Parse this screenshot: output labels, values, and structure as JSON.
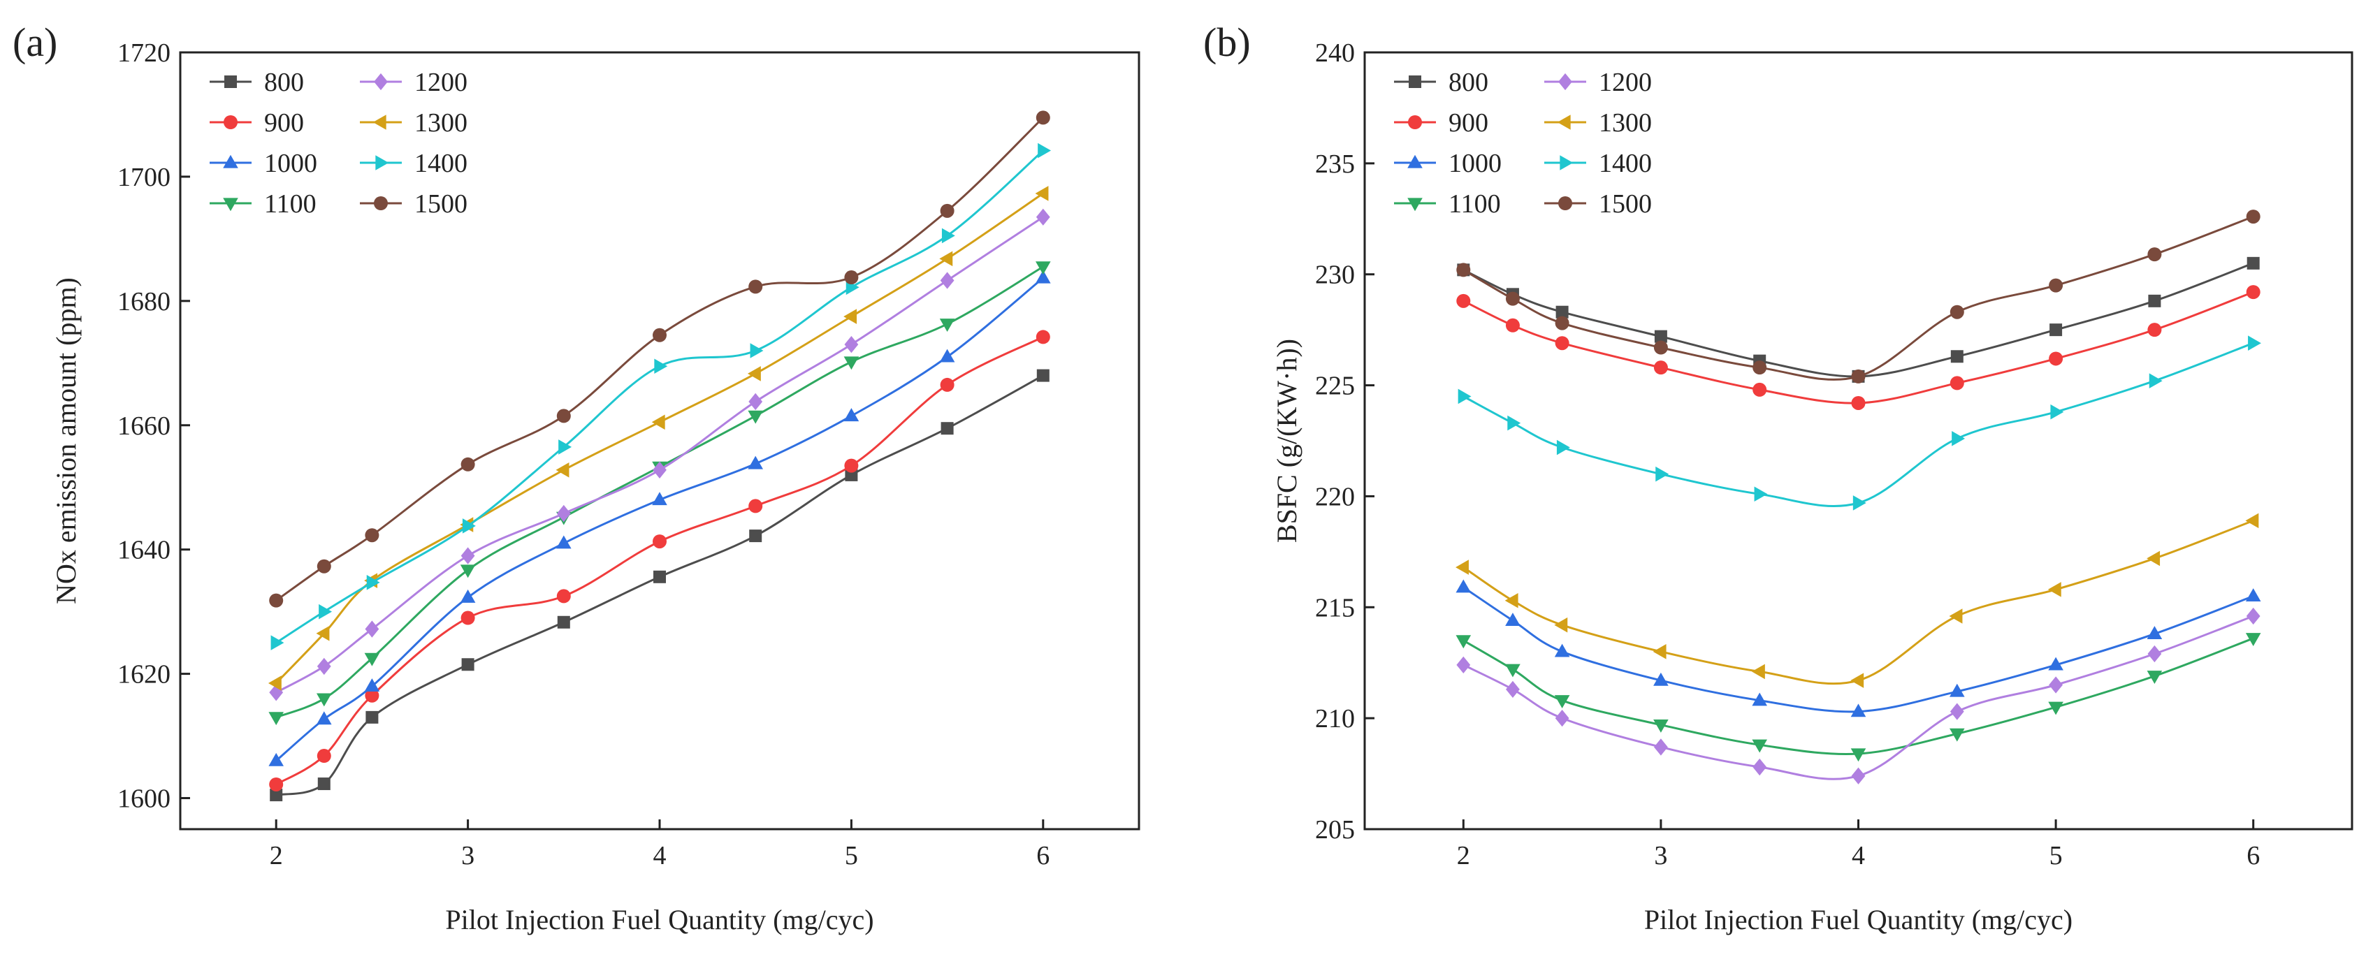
{
  "chart_data": [
    {
      "type": "line",
      "panel_label": "(a)",
      "xlabel": "Pilot Injection Fuel Quantity (mg/cyc)",
      "ylabel": "NOx emission amount (ppm)",
      "xlim": [
        1.5,
        6.5
      ],
      "ylim": [
        1595,
        1720
      ],
      "xticks": [
        2,
        3,
        4,
        5,
        6
      ],
      "yticks": [
        1600,
        1620,
        1640,
        1660,
        1680,
        1700,
        1720
      ],
      "x": [
        2,
        2.25,
        2.5,
        3,
        3.5,
        4,
        4.5,
        5,
        5.5,
        6
      ],
      "legend_position": "top-left",
      "series": [
        {
          "name": "800",
          "color": "#4d4d4d",
          "marker": "square",
          "values": [
            1600.5,
            1602.3,
            1613,
            1621.5,
            1628.3,
            1635.6,
            1642.2,
            1652,
            1659.5,
            1668
          ]
        },
        {
          "name": "900",
          "color": "#f03c3c",
          "marker": "circle",
          "values": [
            1602.2,
            1606.8,
            1616.5,
            1629,
            1632.5,
            1641.3,
            1647,
            1653.5,
            1666.5,
            1674.2
          ]
        },
        {
          "name": "1000",
          "color": "#2f6fe0",
          "marker": "triangle-up",
          "values": [
            1606,
            1612.7,
            1618,
            1632.3,
            1641,
            1648,
            1653.8,
            1661.5,
            1671,
            1683.7
          ]
        },
        {
          "name": "1100",
          "color": "#2ea860",
          "marker": "triangle-down",
          "values": [
            1613,
            1616,
            1622.5,
            1636.7,
            1645.2,
            1653.3,
            1661.5,
            1670.2,
            1676.3,
            1685.5
          ]
        },
        {
          "name": "1200",
          "color": "#b07fe0",
          "marker": "diamond",
          "values": [
            1617,
            1621.2,
            1627.2,
            1639,
            1645.8,
            1652.8,
            1663.8,
            1673,
            1683.3,
            1693.5
          ]
        },
        {
          "name": "1300",
          "color": "#d4a017",
          "marker": "triangle-left",
          "values": [
            1618.5,
            1626.5,
            1635,
            1644,
            1652.8,
            1660.5,
            1668.3,
            1677.5,
            1686.8,
            1697.3
          ]
        },
        {
          "name": "1400",
          "color": "#1fc6cf",
          "marker": "triangle-right",
          "values": [
            1625,
            1630,
            1634.7,
            1643.8,
            1656.5,
            1669.5,
            1672,
            1682.2,
            1690.5,
            1704.2
          ]
        },
        {
          "name": "1500",
          "color": "#7a4a3c",
          "marker": "circle",
          "values": [
            1631.8,
            1637.3,
            1642.3,
            1653.7,
            1661.5,
            1674.5,
            1682.3,
            1683.8,
            1694.5,
            1709.5
          ]
        }
      ]
    },
    {
      "type": "line",
      "panel_label": "(b)",
      "xlabel": "Pilot Injection Fuel Quantity (mg/cyc)",
      "ylabel": "BSFC (g/(KW·h))",
      "xlim": [
        1.5,
        6.5
      ],
      "ylim": [
        205,
        240
      ],
      "xticks": [
        2,
        3,
        4,
        5,
        6
      ],
      "yticks": [
        205,
        210,
        215,
        220,
        225,
        230,
        235,
        240
      ],
      "x": [
        2,
        2.25,
        2.5,
        3,
        3.5,
        4,
        4.5,
        5,
        5.5,
        6
      ],
      "legend_position": "top-left",
      "series": [
        {
          "name": "800",
          "color": "#4d4d4d",
          "marker": "square",
          "values": [
            230.2,
            229.1,
            228.3,
            227.2,
            226.1,
            225.4,
            226.3,
            227.5,
            228.8,
            230.5
          ]
        },
        {
          "name": "900",
          "color": "#f03c3c",
          "marker": "circle",
          "values": [
            228.8,
            227.7,
            226.9,
            225.8,
            224.8,
            224.2,
            225.1,
            226.2,
            227.5,
            229.2
          ]
        },
        {
          "name": "1000",
          "color": "#2f6fe0",
          "marker": "triangle-up",
          "values": [
            215.9,
            214.4,
            213,
            211.7,
            210.8,
            210.3,
            211.2,
            212.4,
            213.8,
            215.5
          ]
        },
        {
          "name": "1100",
          "color": "#2ea860",
          "marker": "triangle-down",
          "values": [
            213.5,
            212.2,
            210.8,
            209.7,
            208.8,
            208.4,
            209.3,
            210.5,
            211.9,
            213.6
          ]
        },
        {
          "name": "1200",
          "color": "#b07fe0",
          "marker": "diamond",
          "values": [
            212.4,
            211.3,
            210,
            208.7,
            207.8,
            207.4,
            210.3,
            211.5,
            212.9,
            214.6
          ]
        },
        {
          "name": "1300",
          "color": "#d4a017",
          "marker": "triangle-left",
          "values": [
            216.8,
            215.3,
            214.2,
            213,
            212.1,
            211.7,
            214.6,
            215.8,
            217.2,
            218.9
          ]
        },
        {
          "name": "1400",
          "color": "#1fc6cf",
          "marker": "triangle-right",
          "values": [
            224.5,
            223.3,
            222.2,
            221,
            220.1,
            219.7,
            222.6,
            223.8,
            225.2,
            226.9
          ]
        },
        {
          "name": "1500",
          "color": "#7a4a3c",
          "marker": "circle",
          "values": [
            230.2,
            228.9,
            227.8,
            226.7,
            225.8,
            225.4,
            228.3,
            229.5,
            230.9,
            232.6
          ]
        }
      ]
    }
  ]
}
